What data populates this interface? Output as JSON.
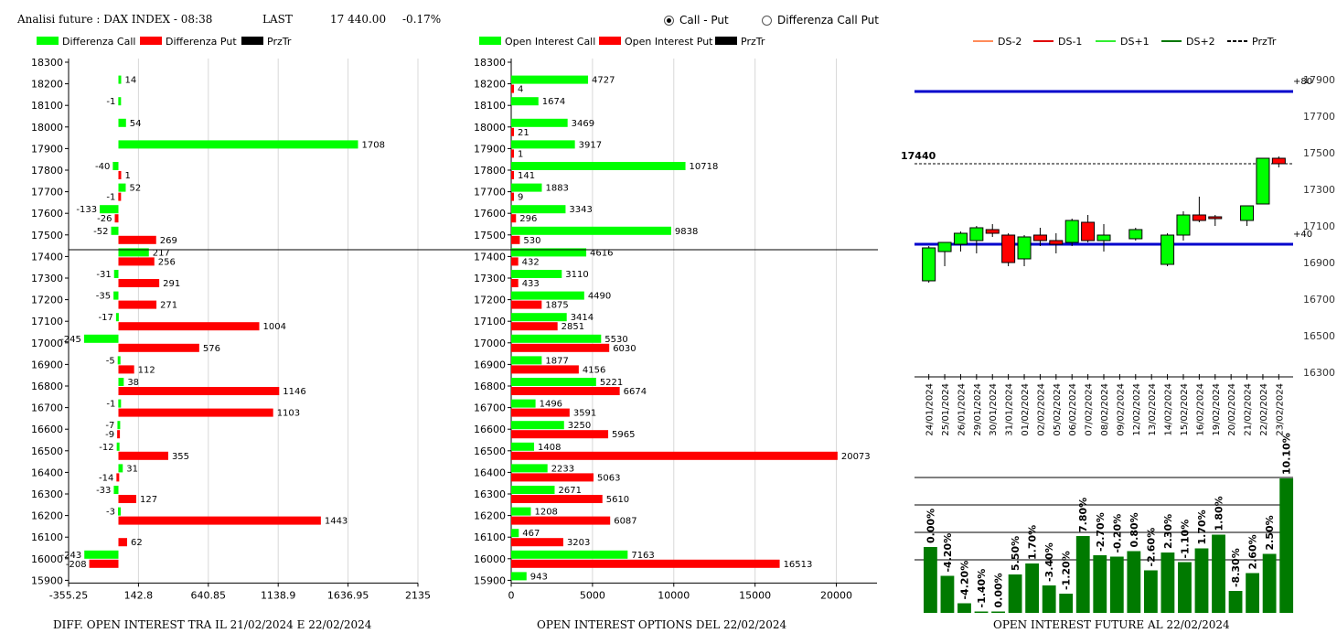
{
  "header": {
    "title": "Analisi future : DAX INDEX - 08:38",
    "last_label": "LAST",
    "last_value": "17 440.00",
    "change": "-0.17%"
  },
  "radios": [
    {
      "label": "Call - Put",
      "selected": true
    },
    {
      "label": "Differenza Call Put",
      "selected": false
    }
  ],
  "captions": {
    "left": "DIFF. OPEN INTEREST TRA IL 21/02/2024 E 22/02/2024",
    "middle": "OPEN INTEREST OPTIONS DEL 22/02/2024",
    "right": "OPEN INTEREST FUTURE AL 22/02/2024"
  },
  "chart_data": [
    {
      "type": "bar",
      "orientation": "horizontal",
      "legend": [
        "Differenza Call",
        "Differenza Put",
        "PrzTr"
      ],
      "colors": {
        "call": "#00ff00",
        "put": "#ff0000",
        "prztr": "#000000"
      },
      "categories": [
        18300,
        18200,
        18100,
        18000,
        17900,
        17800,
        17700,
        17600,
        17500,
        17400,
        17300,
        17200,
        17100,
        17000,
        16900,
        16800,
        16700,
        16600,
        16500,
        16400,
        16300,
        16200,
        16100,
        16000,
        15900
      ],
      "series": [
        {
          "name": "Differenza Call",
          "values": [
            null,
            14,
            -1,
            54,
            1708,
            -40,
            52,
            -133,
            -52,
            217,
            -31,
            -35,
            -17,
            -245,
            -5,
            38,
            -1,
            -7,
            -12,
            31,
            -33,
            -3,
            null,
            -243,
            null
          ]
        },
        {
          "name": "Differenza Put",
          "values": [
            null,
            null,
            null,
            null,
            null,
            1,
            -1,
            -26,
            269,
            256,
            291,
            271,
            1004,
            576,
            112,
            1146,
            1103,
            -9,
            355,
            -14,
            127,
            1443,
            62,
            -208,
            null
          ]
        }
      ],
      "xticks": [
        "-355.25",
        "142.8",
        "640.85",
        "1138.9",
        "1636.95",
        "2135"
      ],
      "xlim": [
        -355.25,
        2135
      ],
      "przTr": 17440
    },
    {
      "type": "bar",
      "orientation": "horizontal",
      "legend": [
        "Open Interest Call",
        "Open Interest Put",
        "PrzTr"
      ],
      "colors": {
        "call": "#00ff00",
        "put": "#ff0000",
        "prztr": "#000000"
      },
      "categories": [
        18300,
        18200,
        18100,
        18000,
        17900,
        17800,
        17700,
        17600,
        17500,
        17400,
        17300,
        17200,
        17100,
        17000,
        16900,
        16800,
        16700,
        16600,
        16500,
        16400,
        16300,
        16200,
        16100,
        16000,
        15900
      ],
      "series": [
        {
          "name": "Open Interest Call",
          "values": [
            null,
            4727,
            1674,
            3469,
            3917,
            10718,
            1883,
            3343,
            9838,
            4616,
            3110,
            4490,
            3414,
            5530,
            1877,
            5221,
            1496,
            3250,
            1408,
            2233,
            2671,
            1208,
            467,
            7163,
            943
          ]
        },
        {
          "name": "Open Interest Put",
          "values": [
            null,
            4,
            null,
            21,
            1,
            141,
            9,
            296,
            530,
            432,
            433,
            1875,
            2851,
            6030,
            4156,
            6674,
            3591,
            5965,
            20073,
            5063,
            5610,
            6087,
            3203,
            16513,
            null
          ]
        }
      ],
      "xticks": [
        "0",
        "5000",
        "10000",
        "15000",
        "20000"
      ],
      "xlim": [
        0,
        22500
      ],
      "przTr": 17440
    },
    {
      "type": "candlestick",
      "legend": [
        "DS-2",
        "DS-1",
        "DS+1",
        "DS+2",
        "PrzTr"
      ],
      "legend_colors": [
        "#ff8c5a",
        "#e00000",
        "#33ee33",
        "#007700",
        "#000000"
      ],
      "yticks": [
        "17900",
        "17700",
        "17500",
        "17300",
        "17100",
        "16900",
        "16700",
        "16500",
        "16300"
      ],
      "ylim": [
        16300,
        17950
      ],
      "price_label": "17440",
      "price_value": 17440,
      "top_line": {
        "value": 17835,
        "label": "+80"
      },
      "bottom_line": {
        "value": 17000,
        "label": "+40"
      },
      "dates": [
        "24/01/2024",
        "25/01/2024",
        "26/01/2024",
        "29/01/2024",
        "30/01/2024",
        "31/01/2024",
        "01/02/2024",
        "02/02/2024",
        "05/02/2024",
        "06/02/2024",
        "07/02/2024",
        "08/02/2024",
        "09/02/2024",
        "12/02/2024",
        "13/02/2024",
        "14/02/2024",
        "15/02/2024",
        "16/02/2024",
        "19/02/2024",
        "20/02/2024",
        "21/02/2024",
        "22/02/2024",
        "23/02/2024"
      ],
      "candles": [
        {
          "o": 16800,
          "h": 16990,
          "l": 16790,
          "c": 16980
        },
        {
          "o": 16960,
          "h": 17010,
          "l": 16880,
          "c": 17010
        },
        {
          "o": 17000,
          "h": 17070,
          "l": 16960,
          "c": 17060
        },
        {
          "o": 17020,
          "h": 17100,
          "l": 16950,
          "c": 17090
        },
        {
          "o": 17080,
          "h": 17110,
          "l": 17040,
          "c": 17060
        },
        {
          "o": 17050,
          "h": 17060,
          "l": 16880,
          "c": 16900
        },
        {
          "o": 16920,
          "h": 17050,
          "l": 16880,
          "c": 17040
        },
        {
          "o": 17050,
          "h": 17090,
          "l": 16990,
          "c": 17020
        },
        {
          "o": 17020,
          "h": 17060,
          "l": 16950,
          "c": 17000
        },
        {
          "o": 17010,
          "h": 17140,
          "l": 16990,
          "c": 17130
        },
        {
          "o": 17120,
          "h": 17160,
          "l": 17010,
          "c": 17020
        },
        {
          "o": 17020,
          "h": 17110,
          "l": 16960,
          "c": 17050
        },
        {
          "o": null,
          "h": null,
          "l": null,
          "c": null
        },
        {
          "o": 17030,
          "h": 17090,
          "l": 17020,
          "c": 17080
        },
        {
          "o": null,
          "h": null,
          "l": null,
          "c": null
        },
        {
          "o": 16890,
          "h": 17060,
          "l": 16880,
          "c": 17050
        },
        {
          "o": 17050,
          "h": 17180,
          "l": 17020,
          "c": 17160
        },
        {
          "o": 17160,
          "h": 17260,
          "l": 17120,
          "c": 17130
        },
        {
          "o": 17150,
          "h": 17160,
          "l": 17100,
          "c": 17140
        },
        {
          "o": null,
          "h": null,
          "l": null,
          "c": null
        },
        {
          "o": 17130,
          "h": 17210,
          "l": 17100,
          "c": 17210
        },
        {
          "o": 17220,
          "h": 17470,
          "l": 17220,
          "c": 17470
        },
        {
          "o": 17470,
          "h": 17480,
          "l": 17420,
          "c": 17440
        }
      ],
      "oi_change_labels": [
        "0.00%",
        "-4.20%",
        "-4.20%",
        "-1.40%",
        "0.00%",
        "5.50%",
        "1.70%",
        "-3.40%",
        "-1.20%",
        "7.80%",
        "-2.70%",
        "-0.20%",
        "0.80%",
        "-2.60%",
        "2.30%",
        "-1.10%",
        "1.70%",
        "1.80%",
        "-8.30%",
        "2.60%",
        "2.50%",
        "10.10%"
      ],
      "oi_bar_levels": [
        0.48,
        0.27,
        0.07,
        0.01,
        0.01,
        0.28,
        0.36,
        0.2,
        0.14,
        0.56,
        0.42,
        0.41,
        0.45,
        0.31,
        0.44,
        0.37,
        0.47,
        0.57,
        0.16,
        0.29,
        0.43,
        0.98
      ]
    }
  ]
}
